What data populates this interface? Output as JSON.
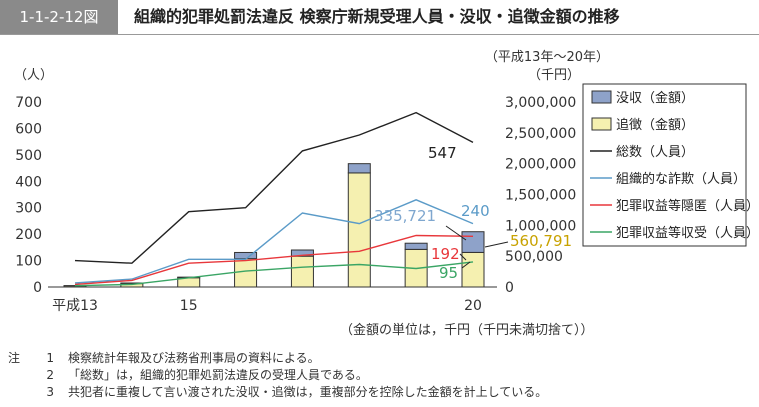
{
  "header": {
    "figure_label": "1-1-2-12図",
    "title": "組織的犯罪処罰法違反 検察庁新規受理人員・没収・追徴金額の推移"
  },
  "period_note": "（平成13年～20年）",
  "unit_note": "（金額の単位は，千円（千円未満切捨て））",
  "notes": {
    "head": "注",
    "items": [
      {
        "num": "1",
        "text": "検察統計年報及び法務省刑事局の資料による。"
      },
      {
        "num": "2",
        "text": "「総数」は，組織的犯罪処罰法違反の受理人員である。"
      },
      {
        "num": "3",
        "text": "共犯者に重複して言い渡された没収・追徴は，重複部分を控除した金額を計上している。"
      }
    ]
  },
  "colors": {
    "confiscation": "#8ea2c9",
    "collection": "#f5f0b0",
    "total": "#222222",
    "fraud": "#5b9bc8",
    "concealment": "#e8373b",
    "receipt": "#3aa565"
  },
  "chart_data": {
    "type": "bar+line",
    "x": [
      "平成13",
      "14",
      "15",
      "16",
      "17",
      "18",
      "19",
      "20"
    ],
    "x_tick_labels": [
      "平成13",
      "",
      "15",
      "",
      "",
      "",
      "",
      "20"
    ],
    "left_axis": {
      "unit_label": "（人）",
      "range": [
        0,
        700
      ],
      "ticks": [
        0,
        100,
        200,
        300,
        400,
        500,
        600,
        700
      ]
    },
    "right_axis": {
      "unit_label": "（千円）",
      "range": [
        0,
        3000000
      ],
      "ticks": [
        0,
        500000,
        1000000,
        1500000,
        2000000,
        2500000,
        3000000
      ],
      "tick_labels": [
        "0",
        "500,000",
        "1,000,000",
        "1,500,000",
        "2,000,000",
        "2,500,000",
        "3,000,000"
      ]
    },
    "bar_series": [
      {
        "name": "追徴（金額）",
        "values": [
          20000,
          55000,
          150000,
          460000,
          500000,
          1850000,
          610000,
          560791
        ]
      },
      {
        "name": "没収（金額）",
        "values": [
          2000,
          10000,
          10000,
          100000,
          100000,
          150000,
          100000,
          335721
        ]
      }
    ],
    "line_series": [
      {
        "name": "総数（人員）",
        "values": [
          100,
          90,
          285,
          300,
          515,
          575,
          660,
          547
        ]
      },
      {
        "name": "組織的な詐欺（人員）",
        "values": [
          15,
          30,
          105,
          105,
          280,
          240,
          330,
          240
        ]
      },
      {
        "name": "犯罪収益等隠匿（人員）",
        "values": [
          10,
          25,
          90,
          100,
          120,
          135,
          195,
          192
        ]
      },
      {
        "name": "犯罪収益等収受（人員）",
        "values": [
          5,
          10,
          35,
          60,
          75,
          85,
          70,
          95
        ]
      }
    ],
    "annotations": [
      {
        "text": "547",
        "series": "総数（人員）"
      },
      {
        "text": "240",
        "series": "組織的な詐欺（人員）"
      },
      {
        "text": "335,721",
        "series": "没収（金額）"
      },
      {
        "text": "560,791",
        "series": "追徴（金額）"
      },
      {
        "text": "192",
        "series": "犯罪収益等隠匿（人員）"
      },
      {
        "text": "95",
        "series": "犯罪収益等収受（人員）"
      }
    ],
    "legend": {
      "placement": "right",
      "items": [
        "没収（金額）",
        "追徴（金額）",
        "総数（人員）",
        "組織的な詐欺（人員）",
        "犯罪収益等隠匿（人員）",
        "犯罪収益等収受（人員）"
      ]
    }
  }
}
